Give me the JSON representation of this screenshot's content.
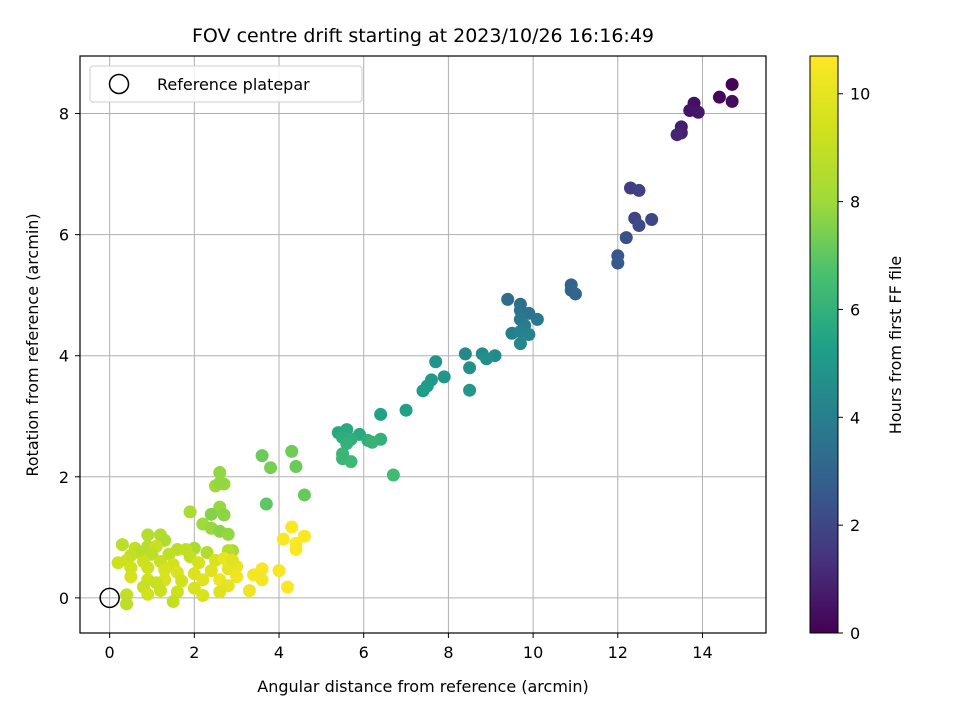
{
  "chart_data": {
    "type": "scatter",
    "title": "FOV centre drift starting at 2023/10/26 16:16:49",
    "xlabel": "Angular distance from reference (arcmin)",
    "ylabel": "Rotation from reference (arcmin)",
    "xlim": [
      -0.7,
      15.5
    ],
    "ylim": [
      -0.58,
      8.95
    ],
    "xticks": [
      0,
      2,
      4,
      6,
      8,
      10,
      12,
      14
    ],
    "yticks": [
      0,
      2,
      4,
      6,
      8
    ],
    "grid": true,
    "legend": {
      "position": "upper-left",
      "entries": [
        "Reference platepar"
      ]
    },
    "reference_point": {
      "x": 0,
      "y": 0,
      "label": "Reference platepar"
    },
    "colorbar": {
      "label": "Hours from first FF file",
      "colormap": "viridis",
      "range": [
        0,
        10.7
      ],
      "ticks": [
        0,
        2,
        4,
        6,
        8,
        10
      ]
    },
    "points": [
      [
        14.7,
        8.48,
        0.1
      ],
      [
        14.4,
        8.27,
        0.2
      ],
      [
        14.7,
        8.2,
        0.3
      ],
      [
        13.8,
        8.17,
        0.4
      ],
      [
        13.7,
        8.05,
        0.5
      ],
      [
        13.9,
        8.02,
        0.6
      ],
      [
        13.5,
        7.78,
        0.8
      ],
      [
        13.5,
        7.68,
        0.9
      ],
      [
        13.4,
        7.65,
        1.0
      ],
      [
        12.3,
        6.77,
        1.7
      ],
      [
        12.5,
        6.73,
        1.8
      ],
      [
        12.4,
        6.27,
        1.9
      ],
      [
        12.8,
        6.25,
        2.0
      ],
      [
        12.5,
        6.15,
        2.1
      ],
      [
        12.2,
        5.95,
        2.3
      ],
      [
        12.0,
        5.65,
        2.5
      ],
      [
        12.0,
        5.53,
        2.6
      ],
      [
        10.9,
        5.17,
        2.9
      ],
      [
        10.9,
        5.08,
        3.0
      ],
      [
        11.0,
        5.02,
        3.1
      ],
      [
        9.4,
        4.93,
        3.3
      ],
      [
        9.7,
        4.85,
        3.4
      ],
      [
        9.7,
        4.75,
        3.5
      ],
      [
        9.9,
        4.7,
        3.6
      ],
      [
        10.1,
        4.6,
        3.7
      ],
      [
        9.7,
        4.6,
        3.8
      ],
      [
        9.8,
        4.5,
        3.9
      ],
      [
        9.5,
        4.37,
        4.0
      ],
      [
        9.7,
        4.4,
        4.1
      ],
      [
        9.9,
        4.35,
        4.2
      ],
      [
        9.7,
        4.2,
        4.3
      ],
      [
        8.4,
        4.03,
        4.4
      ],
      [
        8.8,
        4.03,
        4.5
      ],
      [
        9.1,
        4.0,
        4.5
      ],
      [
        8.9,
        3.95,
        4.6
      ],
      [
        8.5,
        3.8,
        4.7
      ],
      [
        7.7,
        3.9,
        4.8
      ],
      [
        7.9,
        3.65,
        4.9
      ],
      [
        7.6,
        3.6,
        5.0
      ],
      [
        7.5,
        3.5,
        5.1
      ],
      [
        7.4,
        3.42,
        5.2
      ],
      [
        8.5,
        3.43,
        5.0
      ],
      [
        7.0,
        3.1,
        5.3
      ],
      [
        6.4,
        3.03,
        5.4
      ],
      [
        5.4,
        2.73,
        5.6
      ],
      [
        5.6,
        2.78,
        5.7
      ],
      [
        5.9,
        2.7,
        5.7
      ],
      [
        5.5,
        2.65,
        5.8
      ],
      [
        5.7,
        2.62,
        5.9
      ],
      [
        6.1,
        2.6,
        5.9
      ],
      [
        6.4,
        2.62,
        6.0
      ],
      [
        6.2,
        2.57,
        6.1
      ],
      [
        5.6,
        2.55,
        6.0
      ],
      [
        5.5,
        2.38,
        6.2
      ],
      [
        5.5,
        2.3,
        6.2
      ],
      [
        5.7,
        2.25,
        6.3
      ],
      [
        6.7,
        2.03,
        6.4
      ],
      [
        3.6,
        2.35,
        7.2
      ],
      [
        4.3,
        2.42,
        7.3
      ],
      [
        4.4,
        2.17,
        7.2
      ],
      [
        3.8,
        2.15,
        7.4
      ],
      [
        4.6,
        1.7,
        7.1
      ],
      [
        3.7,
        1.55,
        7.0
      ],
      [
        2.6,
        2.07,
        7.8
      ],
      [
        2.7,
        1.88,
        7.9
      ],
      [
        2.5,
        1.85,
        8.0
      ],
      [
        2.6,
        1.9,
        7.8
      ],
      [
        2.6,
        1.5,
        7.9
      ],
      [
        2.7,
        1.37,
        7.7
      ],
      [
        2.4,
        1.38,
        7.6
      ],
      [
        2.2,
        1.22,
        8.0
      ],
      [
        2.4,
        1.15,
        7.9
      ],
      [
        2.6,
        1.1,
        7.7
      ],
      [
        2.8,
        1.05,
        7.8
      ],
      [
        1.9,
        1.42,
        8.3
      ],
      [
        1.2,
        1.04,
        8.5
      ],
      [
        0.9,
        1.04,
        8.6
      ],
      [
        1.3,
        0.95,
        8.4
      ],
      [
        0.9,
        0.85,
        8.7
      ],
      [
        0.3,
        0.88,
        8.8
      ],
      [
        2.0,
        0.82,
        8.3
      ],
      [
        2.9,
        0.78,
        8.2
      ],
      [
        2.3,
        0.75,
        8.5
      ],
      [
        2.8,
        0.78,
        8.6
      ],
      [
        1.6,
        0.8,
        8.8
      ],
      [
        1.8,
        0.8,
        8.9
      ],
      [
        0.6,
        0.82,
        9.0
      ],
      [
        1.1,
        0.85,
        9.1
      ],
      [
        0.7,
        0.75,
        8.7
      ],
      [
        0.5,
        0.7,
        9.0
      ],
      [
        1.0,
        0.72,
        8.8
      ],
      [
        1.4,
        0.72,
        8.9
      ],
      [
        0.4,
        0.62,
        9.2
      ],
      [
        0.2,
        0.58,
        9.3
      ],
      [
        0.8,
        0.6,
        9.2
      ],
      [
        1.2,
        0.6,
        9.1
      ],
      [
        1.5,
        0.55,
        9.4
      ],
      [
        1.9,
        0.68,
        9.0
      ],
      [
        2.1,
        0.58,
        9.5
      ],
      [
        2.5,
        0.62,
        9.6
      ],
      [
        0.5,
        0.5,
        9.4
      ],
      [
        0.9,
        0.5,
        9.3
      ],
      [
        1.3,
        0.46,
        9.5
      ],
      [
        1.6,
        0.42,
        9.7
      ],
      [
        2.0,
        0.4,
        9.7
      ],
      [
        2.4,
        0.45,
        9.8
      ],
      [
        2.8,
        0.48,
        10.0
      ],
      [
        3.0,
        0.52,
        10.1
      ],
      [
        0.5,
        0.35,
        9.5
      ],
      [
        0.9,
        0.3,
        9.3
      ],
      [
        1.3,
        0.3,
        9.6
      ],
      [
        1.7,
        0.28,
        9.4
      ],
      [
        2.2,
        0.3,
        9.9
      ],
      [
        2.6,
        0.3,
        10.2
      ],
      [
        3.0,
        0.35,
        10.3
      ],
      [
        3.4,
        0.38,
        10.4
      ],
      [
        3.6,
        0.48,
        10.5
      ],
      [
        0.8,
        0.18,
        9.1
      ],
      [
        1.2,
        0.12,
        9.2
      ],
      [
        1.6,
        0.1,
        9.3
      ],
      [
        0.4,
        0.05,
        9.0
      ],
      [
        0.9,
        0.06,
        9.4
      ],
      [
        2.0,
        0.16,
        9.5
      ],
      [
        2.8,
        0.2,
        10.0
      ],
      [
        3.3,
        0.12,
        10.3
      ],
      [
        4.2,
        0.18,
        10.6
      ],
      [
        4.0,
        0.45,
        10.5
      ],
      [
        3.6,
        0.3,
        10.4
      ],
      [
        0.4,
        -0.1,
        8.8
      ],
      [
        1.5,
        -0.06,
        9.0
      ],
      [
        2.2,
        0.04,
        9.6
      ],
      [
        2.6,
        0.1,
        9.8
      ],
      [
        1.1,
        0.25,
        9.1
      ],
      [
        2.7,
        0.65,
        10.1
      ],
      [
        2.9,
        0.62,
        9.9
      ],
      [
        4.1,
        0.97,
        10.6
      ],
      [
        4.3,
        1.17,
        10.6
      ],
      [
        4.4,
        0.9,
        10.7
      ],
      [
        4.6,
        1.02,
        10.6
      ],
      [
        4.4,
        0.8,
        10.7
      ]
    ]
  }
}
